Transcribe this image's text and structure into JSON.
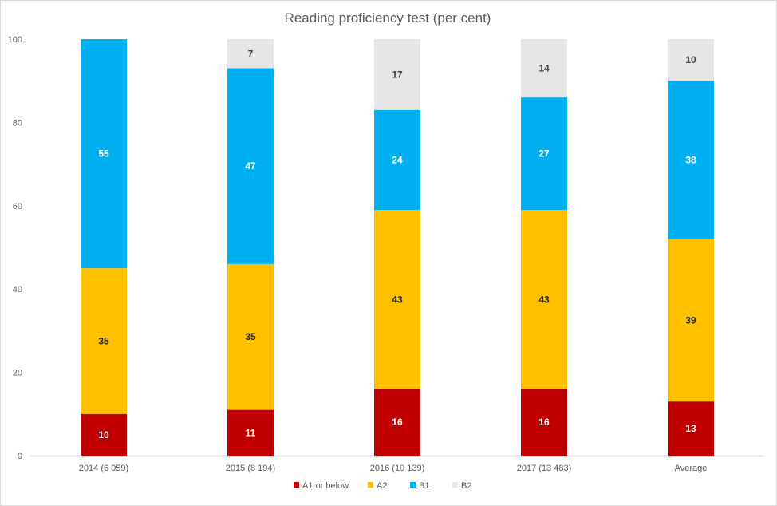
{
  "chart_data": {
    "type": "bar",
    "stacked": true,
    "title": "Reading proficiency test (per cent)",
    "xlabel": "",
    "ylabel": "",
    "ylim": [
      0,
      100
    ],
    "yticks": [
      0,
      20,
      40,
      60,
      80,
      100
    ],
    "categories": [
      "2014 (6 059)",
      "2015 (8 194)",
      "2016 (10 139)",
      "2017 (13 483)",
      "Average"
    ],
    "series": [
      {
        "name": "A1 or below",
        "color": "#c00000",
        "label_color": "#ffffff",
        "values": [
          10,
          11,
          16,
          16,
          13
        ]
      },
      {
        "name": "A2",
        "color": "#ffc000",
        "label_color": "#262626",
        "values": [
          35,
          35,
          43,
          43,
          39
        ]
      },
      {
        "name": "B1",
        "color": "#00b0f0",
        "label_color": "#ffffff",
        "values": [
          55,
          47,
          24,
          27,
          38
        ]
      },
      {
        "name": "B2",
        "color": "#e7e6e6",
        "label_color": "#404040",
        "values": [
          0,
          7,
          17,
          14,
          10
        ]
      }
    ],
    "grid": false,
    "legend": "bottom-center"
  }
}
